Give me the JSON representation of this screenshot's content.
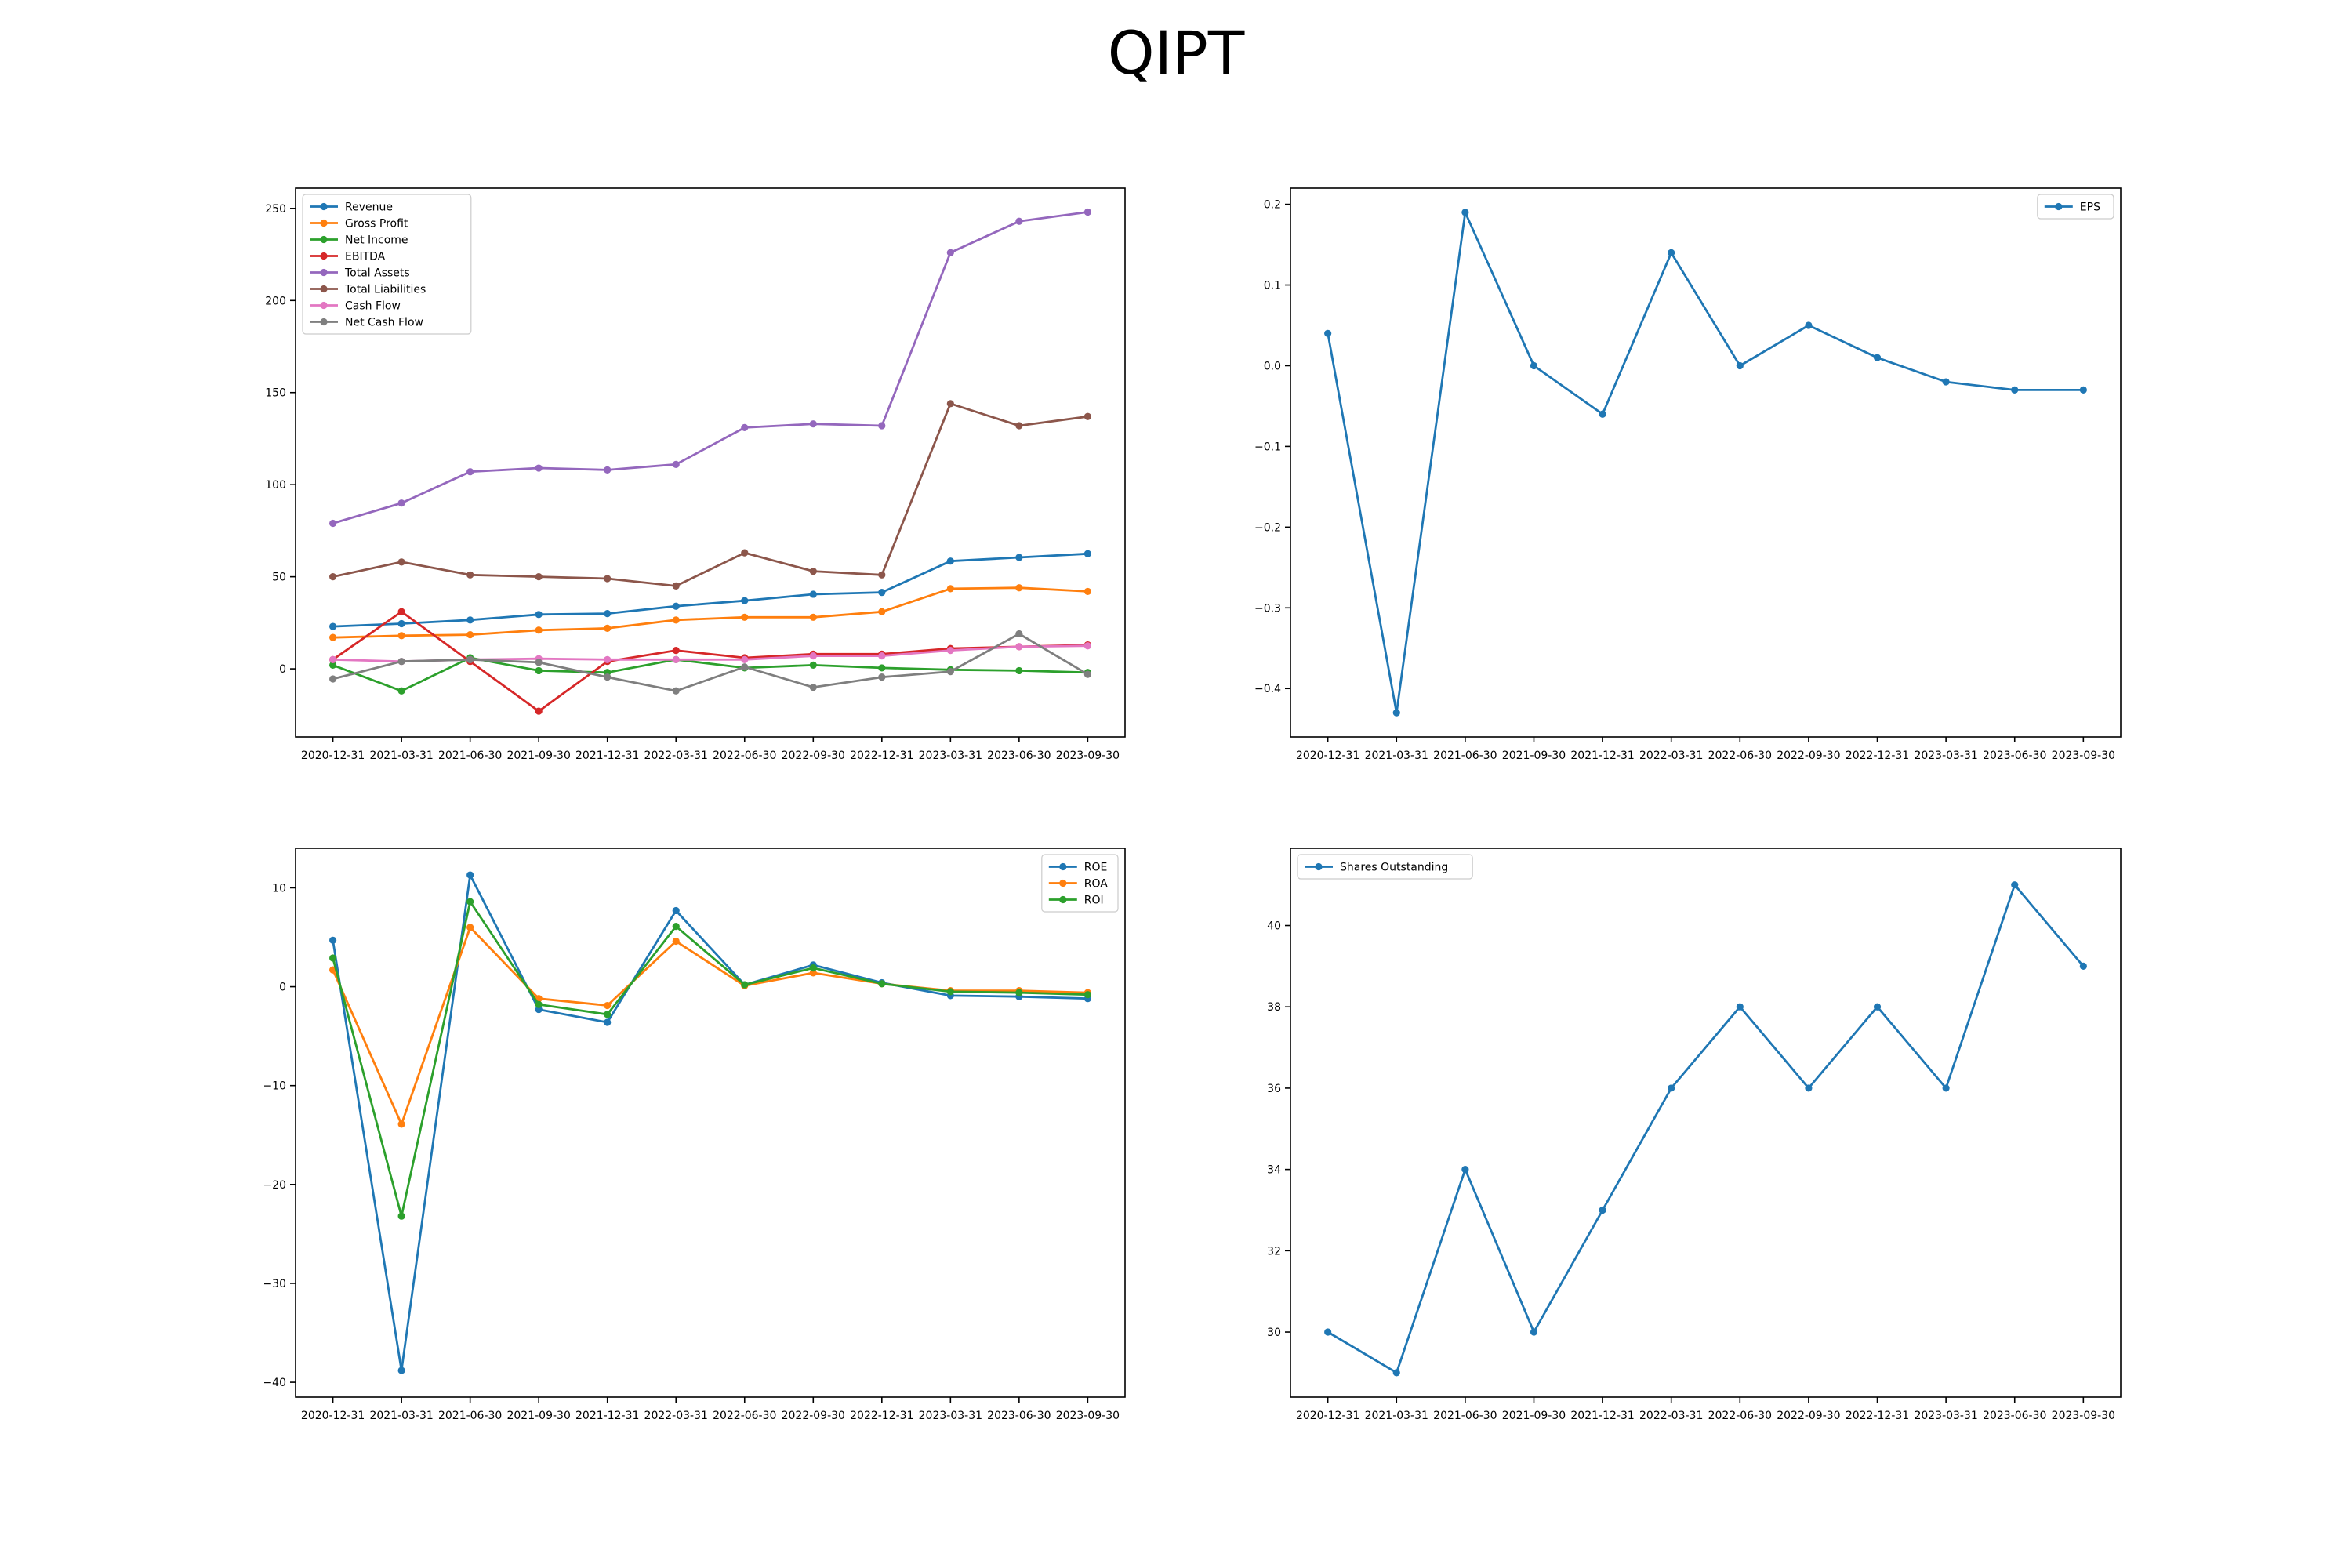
{
  "title": "QIPT",
  "chart_data": [
    {
      "type": "line",
      "categories": [
        "2020-12-31",
        "2021-03-31",
        "2021-06-30",
        "2021-09-30",
        "2021-12-31",
        "2022-03-31",
        "2022-06-30",
        "2022-09-30",
        "2022-12-31",
        "2023-03-31",
        "2023-06-30",
        "2023-09-30"
      ],
      "ylim": [
        -37,
        261
      ],
      "yticks": [
        0,
        50,
        100,
        150,
        200,
        250
      ],
      "legend": "top-left",
      "grid": false,
      "series": [
        {
          "name": "Revenue",
          "color": "#1f77b4",
          "values": [
            23,
            24.5,
            26.5,
            29.5,
            30,
            34,
            37,
            40.5,
            41.5,
            58.5,
            60.5,
            62.5
          ]
        },
        {
          "name": "Gross Profit",
          "color": "#ff7f0e",
          "values": [
            17,
            18,
            18.5,
            21,
            22,
            26.5,
            28,
            28,
            31,
            43.5,
            44,
            42
          ]
        },
        {
          "name": "Net Income",
          "color": "#2ca02c",
          "values": [
            2,
            -12,
            6,
            -1,
            -2,
            5,
            0.5,
            2,
            0.5,
            -0.5,
            -1,
            -2
          ]
        },
        {
          "name": "EBITDA",
          "color": "#d62728",
          "values": [
            5,
            31,
            4,
            -23,
            4,
            10,
            6,
            8,
            8,
            11,
            12,
            13
          ]
        },
        {
          "name": "Total Assets",
          "color": "#9467bd",
          "values": [
            79,
            90,
            107,
            109,
            108,
            111,
            131,
            133,
            132,
            226,
            243,
            248
          ]
        },
        {
          "name": "Total Liabilities",
          "color": "#8c564b",
          "values": [
            50,
            58,
            51,
            50,
            49,
            45,
            63,
            53,
            51,
            144,
            132,
            137
          ]
        },
        {
          "name": "Cash Flow",
          "color": "#e377c2",
          "values": [
            5,
            4,
            5,
            5.5,
            5,
            5,
            5,
            7,
            7,
            10,
            12,
            12.5
          ]
        },
        {
          "name": "Net Cash Flow",
          "color": "#7f7f7f",
          "values": [
            -5.5,
            4,
            5,
            3.5,
            -4.5,
            -12,
            1,
            -10,
            -4.5,
            -1.5,
            19,
            -3
          ]
        }
      ]
    },
    {
      "type": "line",
      "categories": [
        "2020-12-31",
        "2021-03-31",
        "2021-06-30",
        "2021-09-30",
        "2021-12-31",
        "2022-03-31",
        "2022-06-30",
        "2022-09-30",
        "2022-12-31",
        "2023-03-31",
        "2023-06-30",
        "2023-09-30"
      ],
      "ylim": [
        -0.46,
        0.22
      ],
      "yticks": [
        -0.4,
        -0.3,
        -0.2,
        -0.1,
        0.0,
        0.1,
        0.2
      ],
      "ytick_labels": [
        "−0.4",
        "−0.3",
        "−0.2",
        "−0.1",
        "0.0",
        "0.1",
        "0.2"
      ],
      "legend": "top-right",
      "grid": false,
      "series": [
        {
          "name": "EPS",
          "color": "#1f77b4",
          "values": [
            0.04,
            -0.43,
            0.19,
            0.0,
            -0.06,
            0.14,
            0.0,
            0.05,
            0.01,
            -0.02,
            -0.03,
            -0.03
          ]
        }
      ]
    },
    {
      "type": "line",
      "categories": [
        "2020-12-31",
        "2021-03-31",
        "2021-06-30",
        "2021-09-30",
        "2021-12-31",
        "2022-03-31",
        "2022-06-30",
        "2022-09-30",
        "2022-12-31",
        "2023-03-31",
        "2023-06-30",
        "2023-09-30"
      ],
      "ylim": [
        -41.5,
        14
      ],
      "yticks": [
        -40,
        -30,
        -20,
        -10,
        0,
        10
      ],
      "legend": "top-right",
      "grid": false,
      "series": [
        {
          "name": "ROE",
          "color": "#1f77b4",
          "values": [
            4.7,
            -38.8,
            11.3,
            -2.3,
            -3.6,
            7.7,
            0.2,
            2.2,
            0.4,
            -0.9,
            -1.0,
            -1.2
          ]
        },
        {
          "name": "ROA",
          "color": "#ff7f0e",
          "values": [
            1.7,
            -13.9,
            6.0,
            -1.2,
            -1.9,
            4.6,
            0.1,
            1.4,
            0.3,
            -0.4,
            -0.4,
            -0.6
          ]
        },
        {
          "name": "ROI",
          "color": "#2ca02c",
          "values": [
            2.9,
            -23.2,
            8.6,
            -1.8,
            -2.8,
            6.1,
            0.2,
            1.9,
            0.3,
            -0.5,
            -0.6,
            -0.8
          ]
        }
      ]
    },
    {
      "type": "line",
      "categories": [
        "2020-12-31",
        "2021-03-31",
        "2021-06-30",
        "2021-09-30",
        "2021-12-31",
        "2022-03-31",
        "2022-06-30",
        "2022-09-30",
        "2022-12-31",
        "2023-03-31",
        "2023-06-30",
        "2023-09-30"
      ],
      "ylim": [
        28.4,
        41.9
      ],
      "yticks": [
        30,
        32,
        34,
        36,
        38,
        40
      ],
      "legend": "top-left",
      "grid": false,
      "series": [
        {
          "name": "Shares Outstanding",
          "color": "#1f77b4",
          "values": [
            30,
            29,
            34,
            30,
            33,
            36,
            38,
            36,
            38,
            36,
            41,
            39
          ]
        }
      ]
    }
  ]
}
